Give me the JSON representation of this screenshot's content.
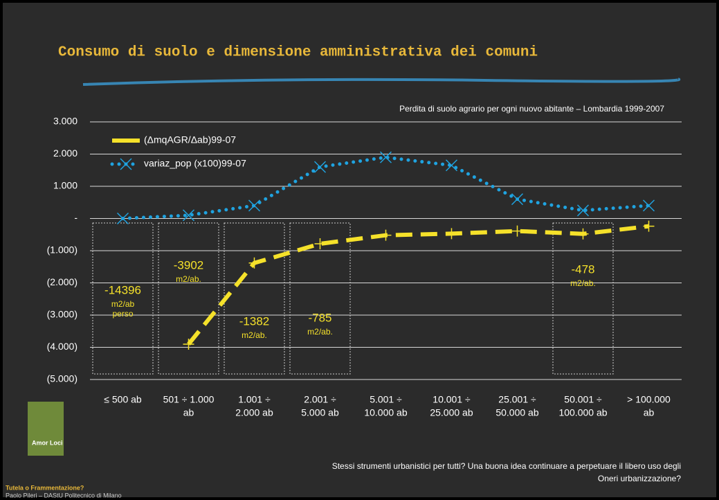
{
  "chart_data": {
    "type": "line",
    "title": "Consumo di suolo e dimensione amministrativa dei comuni",
    "subtitle": "Perdita di suolo agrario per ogni nuovo abitante – Lombardia 1999-2007",
    "categories": [
      [
        "≤ 500 ab"
      ],
      [
        "501 ÷ 1.000",
        "ab"
      ],
      [
        "1.001 ÷",
        "2.000 ab"
      ],
      [
        "2.001 ÷",
        "5.000 ab"
      ],
      [
        "5.001 ÷",
        "10.000 ab"
      ],
      [
        "10.001 ÷",
        "25.000 ab"
      ],
      [
        "25.001 ÷",
        "50.000 ab"
      ],
      [
        "50.001 ÷",
        "100.000 ab"
      ],
      [
        "> 100.000",
        "ab"
      ]
    ],
    "series": [
      {
        "name": "(ΔmqAGR/Δab)99-07",
        "color": "#f5e12a",
        "values": [
          null,
          -3902,
          -1382,
          -785,
          -520,
          -470,
          -390,
          -478,
          -240
        ]
      },
      {
        "name": "variaz_pop (x100)99-07",
        "color": "#1fa3e0",
        "values": [
          0,
          100,
          400,
          1600,
          1900,
          1650,
          600,
          250,
          400
        ]
      }
    ],
    "ylim": [
      -5000,
      3000
    ],
    "yticks": [
      {
        "value": 3000,
        "label": "3.000"
      },
      {
        "value": 2000,
        "label": "2.000"
      },
      {
        "value": 1000,
        "label": "1.000"
      },
      {
        "value": 0,
        "label": "-"
      },
      {
        "value": -1000,
        "label": "(1.000)"
      },
      {
        "value": -2000,
        "label": "(2.000)"
      },
      {
        "value": -3000,
        "label": "(3.000)"
      },
      {
        "value": -4000,
        "label": "(4.000)"
      },
      {
        "value": -5000,
        "label": "(5.000)"
      }
    ],
    "grid": true,
    "legend": "upper left",
    "annotations": [
      [
        "-14396",
        "m2/ab",
        "perso"
      ],
      [
        "-3902",
        "m2/ab."
      ],
      [
        "-1382",
        "m2/ab."
      ],
      [
        "-785",
        "m2/ab."
      ],
      [
        "-478",
        "m2/ab."
      ]
    ]
  },
  "footer": {
    "question": [
      "Stessi strumenti urbanistici per tutti? Una buona idea continuare a perpetuare il libero uso degli",
      "Oneri urbanizzazione?"
    ],
    "book": "Amor Loci",
    "series_title": "Tutela o Frammentazione?",
    "author": "Paolo Pileri – DAStU Politecnico di Milano"
  }
}
